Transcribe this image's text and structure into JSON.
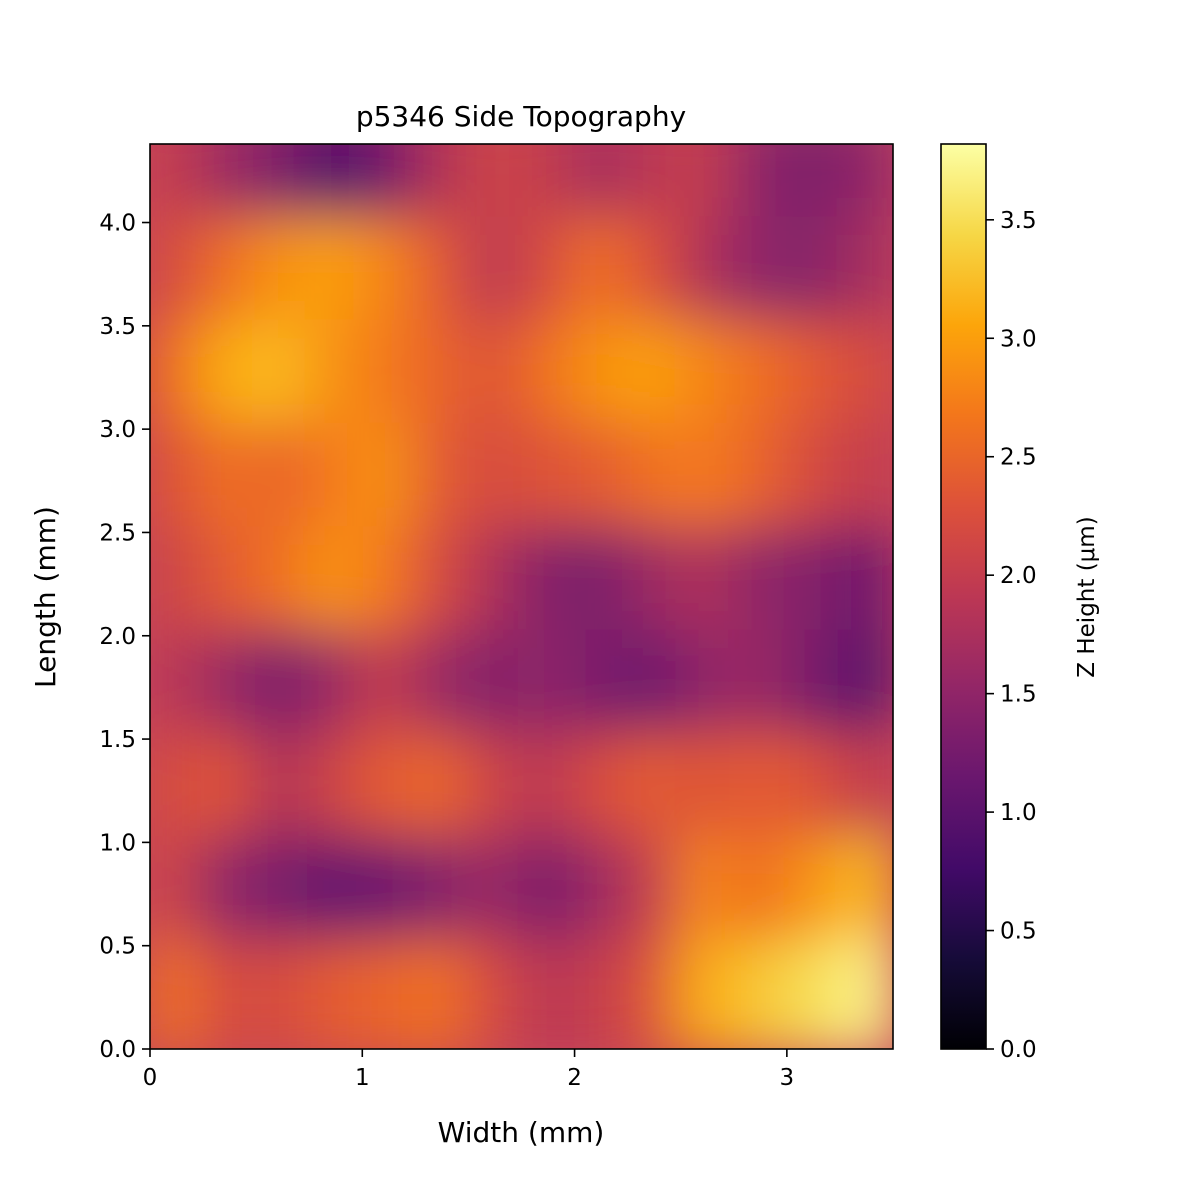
{
  "chart_data": {
    "type": "heatmap",
    "title": "p5346 Side Topography",
    "xlabel": "Width (mm)",
    "ylabel": "Length (mm)",
    "xlim": [
      0,
      3.5
    ],
    "ylim": [
      0,
      4.38
    ],
    "xticks": [
      0,
      1,
      2,
      3
    ],
    "xtick_labels": [
      "0",
      "1",
      "2",
      "3"
    ],
    "yticks": [
      0.0,
      0.5,
      1.0,
      1.5,
      2.0,
      2.5,
      3.0,
      3.5,
      4.0
    ],
    "ytick_labels": [
      "0.0",
      "0.5",
      "1.0",
      "1.5",
      "2.0",
      "2.5",
      "3.0",
      "3.5",
      "4.0"
    ],
    "colorbar": {
      "label": "Z Height (μm)",
      "colormap": "inferno",
      "range": [
        0,
        3.82
      ],
      "ticks": [
        0.0,
        0.5,
        1.0,
        1.5,
        2.0,
        2.5,
        3.0,
        3.5
      ],
      "tick_labels": [
        "0.0",
        "0.5",
        "1.0",
        "1.5",
        "2.0",
        "2.5",
        "3.0",
        "3.5"
      ]
    },
    "grid": false,
    "x_centers_mm": [
      0.125,
      0.375,
      0.625,
      0.875,
      1.125,
      1.375,
      1.625,
      1.875,
      2.125,
      2.375,
      2.625,
      2.875,
      3.125,
      3.375
    ],
    "y_centers_mm": [
      4.25,
      3.75,
      3.25,
      2.75,
      2.25,
      1.75,
      1.25,
      0.75,
      0.25
    ],
    "z_height_um_rows_top_to_bottom": [
      [
        2.0,
        1.6,
        1.3,
        0.9,
        1.2,
        1.8,
        2.1,
        2.0,
        1.7,
        1.9,
        2.0,
        1.5,
        1.3,
        1.5
      ],
      [
        2.2,
        2.6,
        2.9,
        3.0,
        2.8,
        2.4,
        1.9,
        2.2,
        2.6,
        2.3,
        1.8,
        1.5,
        1.4,
        1.7
      ],
      [
        2.6,
        3.1,
        3.2,
        2.9,
        2.7,
        2.5,
        2.3,
        2.6,
        2.9,
        3.0,
        2.8,
        2.6,
        2.4,
        2.2
      ],
      [
        2.3,
        2.6,
        2.5,
        2.7,
        2.9,
        2.4,
        2.2,
        2.3,
        2.4,
        2.6,
        2.7,
        2.5,
        2.2,
        2.0
      ],
      [
        2.1,
        2.4,
        2.6,
        2.9,
        2.7,
        2.2,
        1.8,
        1.4,
        1.3,
        1.6,
        1.8,
        1.5,
        1.4,
        1.2
      ],
      [
        1.9,
        1.6,
        1.3,
        1.6,
        2.0,
        1.6,
        1.4,
        1.5,
        1.3,
        1.2,
        1.5,
        1.6,
        1.3,
        1.0
      ],
      [
        2.2,
        2.3,
        1.8,
        2.1,
        2.4,
        2.5,
        2.1,
        1.9,
        2.2,
        2.4,
        2.3,
        2.4,
        2.3,
        2.0
      ],
      [
        2.1,
        1.5,
        1.3,
        1.1,
        1.2,
        1.4,
        1.6,
        1.3,
        1.6,
        2.0,
        2.8,
        2.6,
        2.9,
        3.2
      ],
      [
        2.6,
        2.2,
        2.2,
        2.4,
        2.5,
        2.6,
        2.2,
        1.9,
        2.0,
        2.3,
        3.1,
        3.3,
        3.5,
        3.7
      ]
    ]
  }
}
